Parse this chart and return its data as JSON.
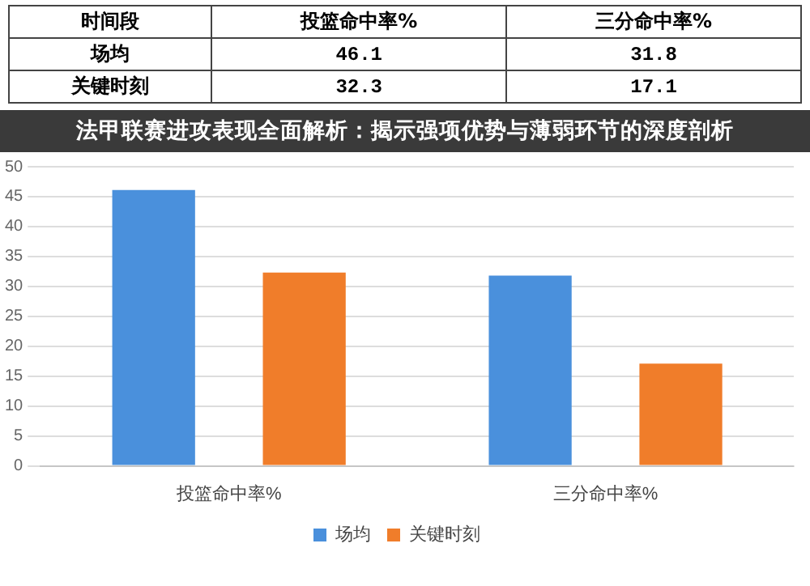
{
  "chart_data": {
    "type": "bar",
    "title": "法甲联赛进攻表现全面解析：揭示强项优势与薄弱环节的深度剖析",
    "annotations": [
      "时间段"
    ],
    "categories": [
      "投篮命中率%",
      "三分命中率%"
    ],
    "series": [
      {
        "name": "场均",
        "color": "#4a90dc",
        "values": [
          46.1,
          31.8
        ]
      },
      {
        "name": "关键时刻",
        "color": "#f07d2a",
        "values": [
          32.3,
          17.1
        ]
      }
    ],
    "ylim": [
      0,
      50
    ],
    "yticks": [
      0,
      5,
      10,
      15,
      20,
      25,
      30,
      35,
      40,
      45,
      50
    ],
    "grid": "y",
    "legend": "bottom",
    "data_labels": true
  }
}
